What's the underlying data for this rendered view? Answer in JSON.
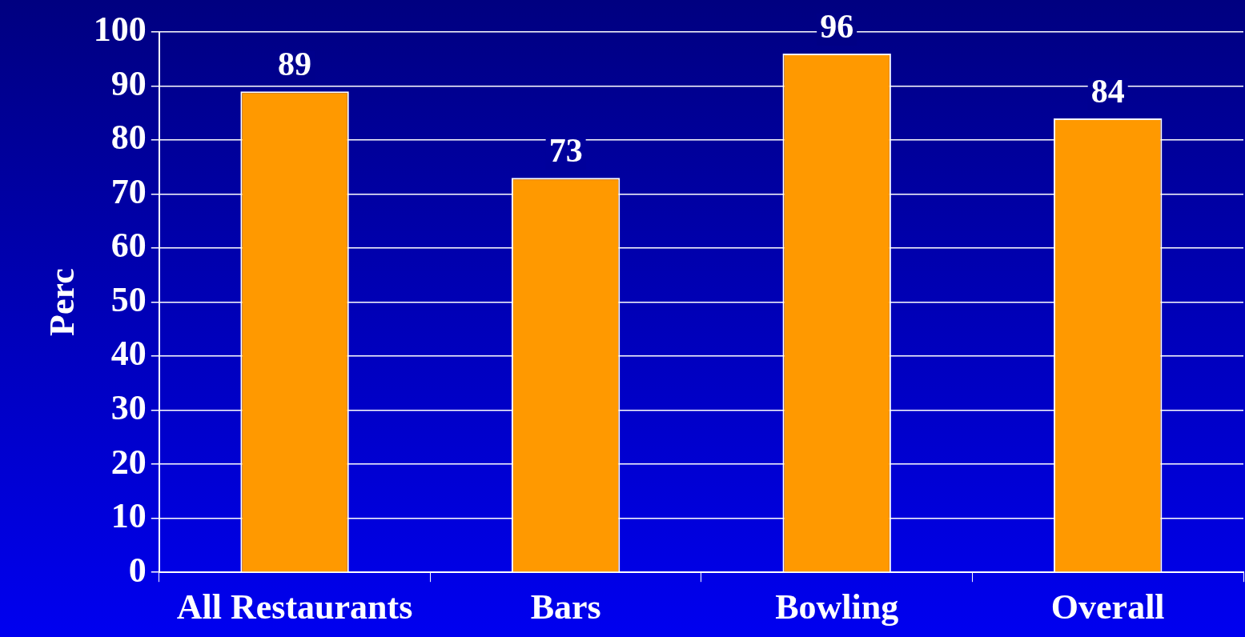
{
  "chart_data": {
    "type": "bar",
    "ylabel": "Perc",
    "categories": [
      "All Restaurants",
      "Bars",
      "Bowling",
      "Overall"
    ],
    "values": [
      89,
      73,
      96,
      84
    ],
    "color": "#ff9900",
    "ylim": [
      0,
      100
    ],
    "yticks": [
      0,
      10,
      20,
      30,
      40,
      50,
      60,
      70,
      80,
      90,
      100
    ],
    "grid": "y",
    "data_labels": true
  }
}
